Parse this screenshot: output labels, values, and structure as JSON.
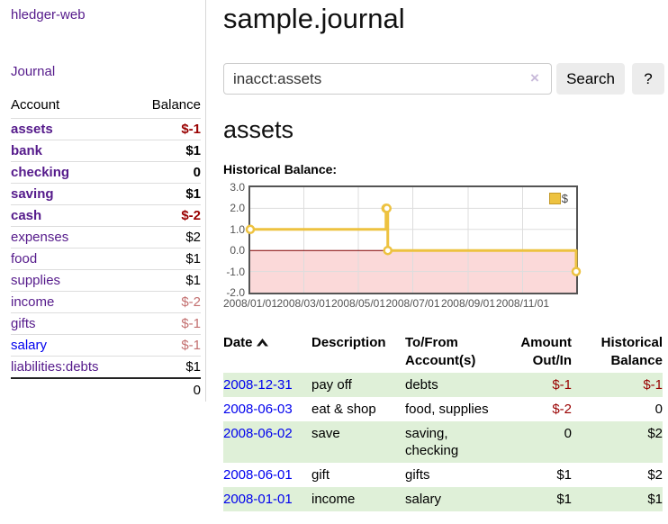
{
  "brand": "hledger-web",
  "nav": {
    "journal": "Journal"
  },
  "sidebar": {
    "account_header": "Account",
    "balance_header": "Balance",
    "rows": [
      {
        "name": "assets",
        "balance": "$-1"
      },
      {
        "name": "bank",
        "balance": "$1"
      },
      {
        "name": "checking",
        "balance": "0"
      },
      {
        "name": "saving",
        "balance": "$1"
      },
      {
        "name": "cash",
        "balance": "$-2"
      },
      {
        "name": "expenses",
        "balance": "$2"
      },
      {
        "name": "food",
        "balance": "$1"
      },
      {
        "name": "supplies",
        "balance": "$1"
      },
      {
        "name": "income",
        "balance": "$-2"
      },
      {
        "name": "gifts",
        "balance": "$-1"
      },
      {
        "name": "salary",
        "balance": "$-1"
      },
      {
        "name": "liabilities:debts",
        "balance": "$1"
      }
    ],
    "total": "0"
  },
  "header": {
    "title": "sample.journal"
  },
  "search": {
    "value": "inacct:assets",
    "clear_icon": "×",
    "button": "Search",
    "help_button": "?"
  },
  "account_page": {
    "heading": "assets",
    "chart_label": "Historical Balance:"
  },
  "chart_data": {
    "type": "line",
    "title": "Historical Balance:",
    "x_range": [
      "2008-01-01",
      "2008-12-31"
    ],
    "ylim": [
      -2,
      3
    ],
    "yticks": [
      3,
      2,
      1,
      0,
      -1,
      -2
    ],
    "xticks": [
      "2008/01/01",
      "2008/03/01",
      "2008/05/01",
      "2008/07/01",
      "2008/09/01",
      "2008/11/01"
    ],
    "series": [
      {
        "name": "$",
        "color": "#edc240",
        "step": true,
        "points": [
          {
            "x": "2008-01-01",
            "y": 1
          },
          {
            "x": "2008-06-01",
            "y": 2
          },
          {
            "x": "2008-06-02",
            "y": 2
          },
          {
            "x": "2008-06-03",
            "y": 0
          },
          {
            "x": "2008-12-31",
            "y": -1
          }
        ]
      }
    ],
    "legend_position": "top-right",
    "grid": true,
    "styles": {
      "negative_region": "#fbd9d9",
      "zero_line": "#800000",
      "grid_line": "#dddddd",
      "border": "#545454"
    }
  },
  "register": {
    "sort": "ascending",
    "columns": {
      "date": "Date",
      "description": "Description",
      "accounts": "To/From Account(s)",
      "amount": "Amount Out/In",
      "historical": "Historical Balance"
    },
    "rows": [
      {
        "date": "2008-12-31",
        "description": "pay off",
        "accounts": "debts",
        "amount": "$-1",
        "historical": "$-1"
      },
      {
        "date": "2008-06-03",
        "description": "eat & shop",
        "accounts": "food, supplies",
        "amount": "$-2",
        "historical": "0"
      },
      {
        "date": "2008-06-02",
        "description": "save",
        "accounts": "saving, checking",
        "amount": "0",
        "historical": "$2"
      },
      {
        "date": "2008-06-01",
        "description": "gift",
        "accounts": "gifts",
        "amount": "$1",
        "historical": "$2"
      },
      {
        "date": "2008-01-01",
        "description": "income",
        "accounts": "salary",
        "amount": "$1",
        "historical": "$1"
      }
    ]
  },
  "colors": {
    "link_visited_purple": "#551a8b",
    "link_blue": "#0000ee",
    "negative_strong": "#990000",
    "negative_muted": "#c36f6f",
    "row_stripe_green": "#dff0d8",
    "series_gold": "#edc240",
    "negative_region_pink": "#fbd9d9",
    "zero_line_dark_red": "#800000"
  }
}
